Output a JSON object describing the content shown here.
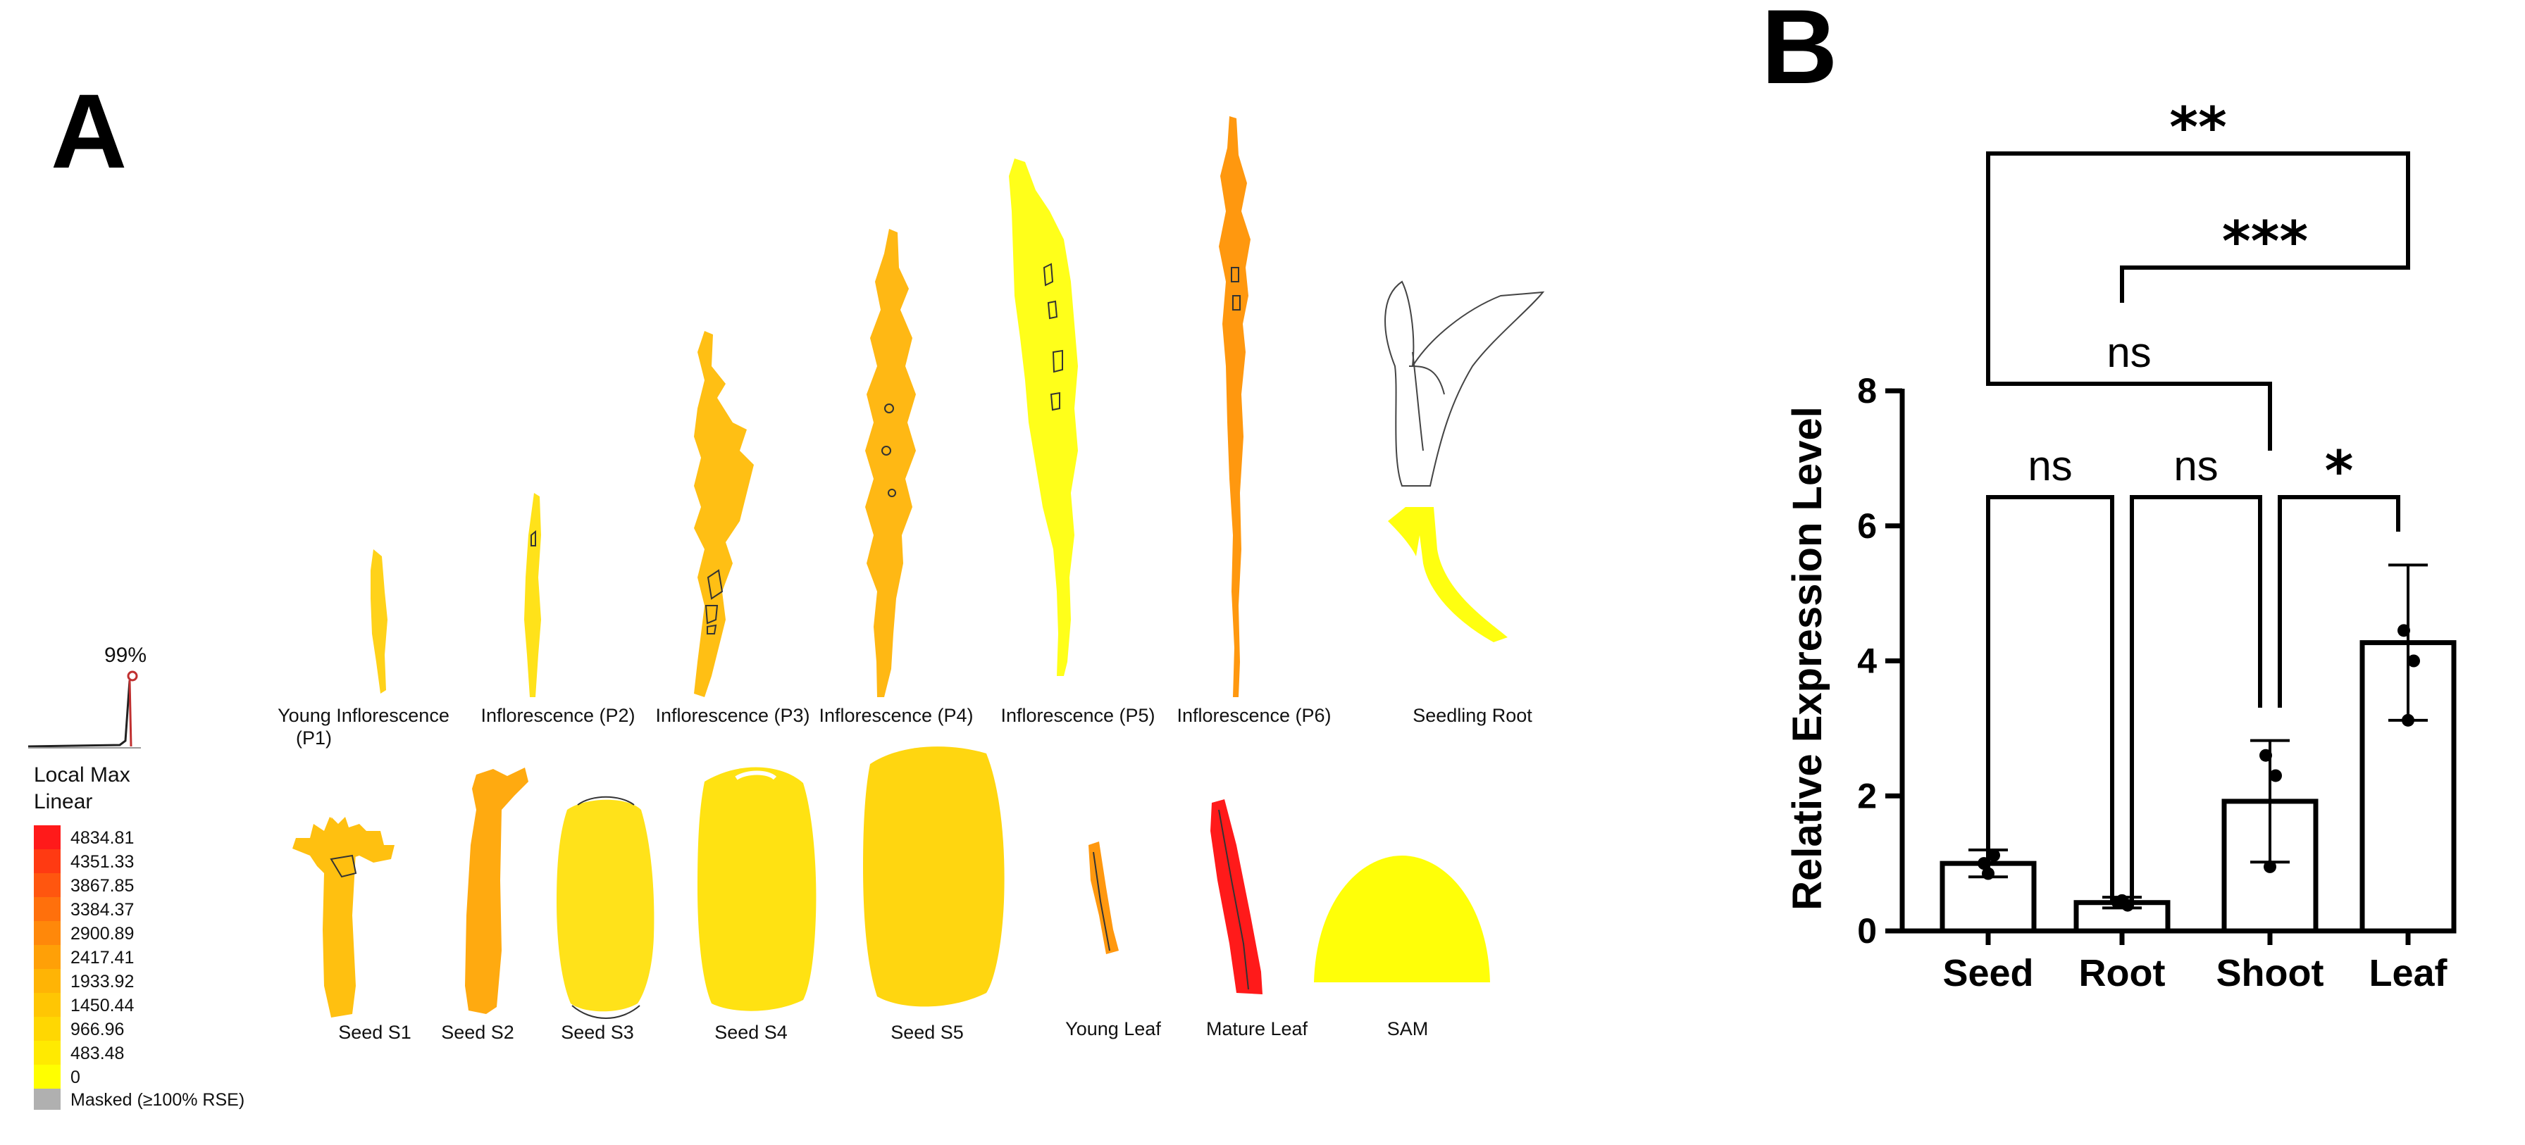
{
  "panel_a": {
    "letter": "A",
    "curve_label": "99%",
    "legend": {
      "title_1": "Local Max",
      "title_2": "Linear",
      "entries": [
        {
          "value": "4834.81",
          "color": "#ff1a1a"
        },
        {
          "value": "4351.33",
          "color": "#ff3a12"
        },
        {
          "value": "3867.85",
          "color": "#ff560f"
        },
        {
          "value": "3384.37",
          "color": "#ff700c"
        },
        {
          "value": "2900.89",
          "color": "#ff880a"
        },
        {
          "value": "2417.41",
          "color": "#ffa007"
        },
        {
          "value": "1933.92",
          "color": "#ffb405"
        },
        {
          "value": "1450.44",
          "color": "#ffc603"
        },
        {
          "value": "966.96",
          "color": "#ffd702"
        },
        {
          "value": "483.48",
          "color": "#ffea01"
        },
        {
          "value": "0",
          "color": "#ffff00"
        }
      ],
      "masked_label": "Masked (≥100% RSE)",
      "masked_color": "#b0b0b0"
    },
    "tissues_row1": [
      {
        "label": "Young Inflorescence",
        "label2": "(P1)",
        "color": "#ffd21a"
      },
      {
        "label": "Inflorescence (P2)",
        "label2": "",
        "color": "#ffe21a"
      },
      {
        "label": "Inflorescence (P3)",
        "label2": "",
        "color": "#ffbf14"
      },
      {
        "label": "Inflorescence (P4)",
        "label2": "",
        "color": "#ffb814"
      },
      {
        "label": "Inflorescence (P5)",
        "label2": "",
        "color": "#ffff1a"
      },
      {
        "label": "Inflorescence (P6)",
        "label2": "",
        "color": "#ff980f"
      },
      {
        "label": "Seedling Root",
        "label2": "",
        "color": "#ffff10"
      }
    ],
    "tissues_row2": [
      {
        "label": "Seed S1",
        "color": "#ffc010"
      },
      {
        "label": "Seed S2",
        "color": "#ffaa10"
      },
      {
        "label": "Seed S3",
        "color": "#ffe21a"
      },
      {
        "label": "Seed S4",
        "color": "#ffe212"
      },
      {
        "label": "Seed S5",
        "color": "#ffd610"
      },
      {
        "label": "Young Leaf",
        "color": "#ff980f"
      },
      {
        "label": "Mature Leaf",
        "color": "#ff1a1a"
      },
      {
        "label": "SAM",
        "color": "#ffff08"
      }
    ]
  },
  "panel_b": {
    "letter": "B"
  },
  "chart_data": {
    "type": "bar",
    "title": "",
    "xlabel": "",
    "ylabel": "Relative Expression Level",
    "ylim": [
      0,
      8
    ],
    "yticks": [
      "0",
      "2",
      "4",
      "6",
      "8"
    ],
    "categories": [
      "Seed",
      "Root",
      "Shoot",
      "Leaf"
    ],
    "values": [
      1.0,
      0.42,
      1.92,
      4.27
    ],
    "errors": [
      0.2,
      0.08,
      0.9,
      1.15
    ],
    "points": [
      [
        1.0,
        1.12,
        0.85
      ],
      [
        0.42,
        0.38,
        0.45
      ],
      [
        2.6,
        2.3,
        0.95
      ],
      [
        4.45,
        4.0,
        3.12
      ]
    ],
    "comparisons": [
      {
        "from": "Seed",
        "to": "Root",
        "label": "ns"
      },
      {
        "from": "Root",
        "to": "Shoot",
        "label": "ns"
      },
      {
        "from": "Shoot",
        "to": "Leaf",
        "label": "*"
      },
      {
        "from": "Seed",
        "to": "Shoot",
        "label": "ns"
      },
      {
        "from": "Root",
        "to": "Leaf",
        "label": "***"
      },
      {
        "from": "Seed",
        "to": "Leaf",
        "label": "**"
      }
    ]
  }
}
